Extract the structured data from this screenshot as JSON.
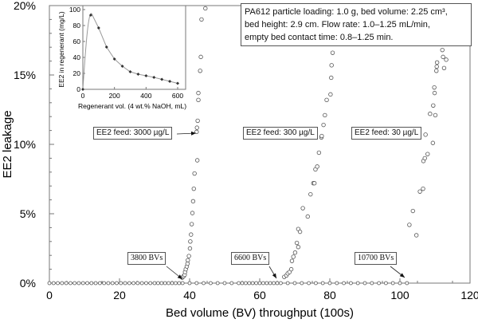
{
  "chart_data": {
    "type": "scatter",
    "xlabel": "Bed volume (BV) throughput (100s)",
    "ylabel": "EE2 leakage",
    "xlim": [
      0,
      120
    ],
    "ylim": [
      0,
      20
    ],
    "x_ticks": [
      "0",
      "20",
      "40",
      "60",
      "80",
      "100",
      "120"
    ],
    "y_ticks": [
      "0%",
      "5%",
      "10%",
      "15%",
      "20%"
    ],
    "grid": false,
    "series": [
      {
        "name": "EE2 feed: 3000 µg/L",
        "zero_x": [
          0,
          1.2,
          2.4,
          3.6,
          4.8,
          6,
          7.2,
          8.4,
          9.6,
          10.8,
          12,
          13.2,
          14.4,
          15.6,
          16.8,
          18,
          19.2,
          20.4,
          21.6,
          22.8,
          24,
          25.2,
          26.4,
          27.6,
          28.8,
          30,
          31,
          32,
          33,
          34,
          35,
          36,
          37
        ],
        "points": [
          [
            37.9,
            0.4
          ],
          [
            38.3,
            0.5
          ],
          [
            38.6,
            0.6
          ],
          [
            38.7,
            0.8
          ],
          [
            38.9,
            1.0
          ],
          [
            39.2,
            1.2
          ],
          [
            39.4,
            1.4
          ],
          [
            39.5,
            1.65
          ],
          [
            39.8,
            1.95
          ],
          [
            40.1,
            2.5
          ],
          [
            40.2,
            3.0
          ],
          [
            40.4,
            3.5
          ],
          [
            40.6,
            4.25
          ],
          [
            40.8,
            5.05
          ],
          [
            41.0,
            5.9
          ],
          [
            41.2,
            6.8
          ],
          [
            41.4,
            7.9
          ],
          [
            42.2,
            8.85
          ],
          [
            42.0,
            10.9
          ],
          [
            42.1,
            11.2
          ],
          [
            42.3,
            11.7
          ],
          [
            42.5,
            13.2
          ],
          [
            42.5,
            13.7
          ],
          [
            43.0,
            15.3
          ],
          [
            43.2,
            16.3
          ],
          [
            43.4,
            19.0
          ],
          [
            44.5,
            19.8
          ]
        ]
      },
      {
        "name": "EE2 feed: 300 µg/L",
        "zero_x": [
          38,
          40,
          42,
          44,
          46,
          48,
          50,
          52,
          54,
          55,
          56,
          57,
          58,
          59,
          60,
          61,
          62,
          63,
          64,
          65,
          66
        ],
        "points": [
          [
            67.0,
            0.45
          ],
          [
            67.6,
            0.55
          ],
          [
            68.0,
            0.7
          ],
          [
            68.5,
            0.8
          ],
          [
            69.0,
            1.0
          ],
          [
            69.2,
            1.6
          ],
          [
            69.6,
            1.9
          ],
          [
            70.1,
            2.2
          ],
          [
            70.6,
            2.9
          ],
          [
            71.0,
            2.6
          ],
          [
            71.0,
            3.9
          ],
          [
            71.5,
            3.7
          ],
          [
            72.3,
            5.4
          ],
          [
            73.7,
            4.8
          ],
          [
            74.5,
            6.4
          ],
          [
            75.3,
            7.2
          ],
          [
            75.6,
            7.2
          ],
          [
            75.9,
            8.2
          ],
          [
            76.4,
            8.4
          ],
          [
            76.9,
            9.4
          ],
          [
            77.6,
            10.5
          ],
          [
            77.7,
            10.6
          ],
          [
            78.2,
            11.4
          ],
          [
            78.6,
            12.1
          ],
          [
            79.1,
            13.2
          ],
          [
            80.2,
            13.6
          ],
          [
            80.4,
            14.8
          ],
          [
            80.5,
            15.7
          ],
          [
            80.8,
            16.6
          ]
        ]
      },
      {
        "name": "EE2 feed: 30 µg/L",
        "zero_x": [
          68,
          70,
          72,
          74,
          76,
          78,
          80,
          82,
          84,
          86,
          88,
          90,
          92,
          94,
          96,
          98,
          100,
          102
        ],
        "points": [
          [
            102.7,
            4.2
          ],
          [
            103.7,
            5.2
          ],
          [
            104.7,
            3.45
          ],
          [
            105.7,
            6.6
          ],
          [
            106.6,
            6.8
          ],
          [
            106.7,
            8.8
          ],
          [
            107.1,
            9.0
          ],
          [
            107.9,
            9.3
          ],
          [
            109.4,
            10.1
          ],
          [
            107.3,
            10.7
          ],
          [
            108.6,
            12.2
          ],
          [
            110.1,
            12.1
          ],
          [
            109.5,
            12.8
          ],
          [
            109.8,
            14.1
          ],
          [
            109.9,
            13.7
          ],
          [
            110.4,
            15.3
          ],
          [
            110.5,
            15.6
          ],
          [
            110.6,
            15.9
          ],
          [
            112.6,
            15.5
          ],
          [
            112.3,
            16.3
          ],
          [
            113.2,
            16.1
          ],
          [
            112.1,
            16.8
          ]
        ]
      }
    ],
    "annotations": {
      "feed_3000": "EE2 feed: 3000 µg/L",
      "feed_300": "EE2 feed: 300 µg/L",
      "feed_30": "EE2 feed: 30 µg/L",
      "bv_3800": "3800 BVs",
      "bv_6600": "6600 BVs",
      "bv_10700": "10700 BVs",
      "params_line1": "PA612 particle loading: 1.0 g, bed volume: 2.25 cm³,",
      "params_line2": "bed height: 2.9 cm. Flow rate: 1.0–1.25 mL/min,",
      "params_line3": "empty bed contact time: 0.8–1.25 min."
    },
    "inset": {
      "type": "line+scatter",
      "xlabel": "Regenerant vol. (4 wt.% NaOH, mL)",
      "ylabel": "EE2 in regenerant (mg/L)",
      "xlim": [
        0,
        600
      ],
      "ylim": [
        0,
        100
      ],
      "x_ticks": [
        "0",
        "200",
        "400",
        "600"
      ],
      "y_ticks": [
        "0",
        "20",
        "40",
        "60",
        "80",
        "100"
      ],
      "points": [
        [
          0,
          0
        ],
        [
          50,
          93
        ],
        [
          100,
          77
        ],
        [
          150,
          53
        ],
        [
          200,
          38
        ],
        [
          250,
          29
        ],
        [
          300,
          22
        ],
        [
          350,
          19
        ],
        [
          400,
          17
        ],
        [
          450,
          15
        ],
        [
          500,
          12.5
        ],
        [
          550,
          10
        ],
        [
          600,
          7.5
        ]
      ]
    }
  }
}
